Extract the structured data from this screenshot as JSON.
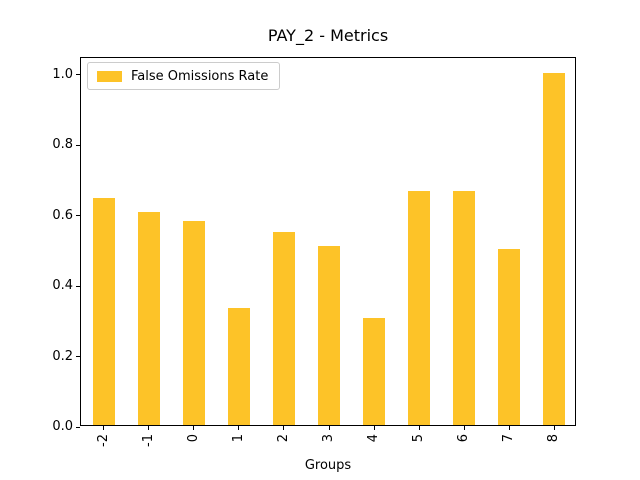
{
  "title": "PAY_2 - Metrics",
  "legend": {
    "label": "False Omissions Rate"
  },
  "chart_data": {
    "type": "bar",
    "title": "PAY_2 - Metrics",
    "xlabel": "Groups",
    "ylabel": "",
    "categories": [
      "-2",
      "-1",
      "0",
      "1",
      "2",
      "3",
      "4",
      "5",
      "6",
      "7",
      "8"
    ],
    "series": [
      {
        "name": "False Omissions Rate",
        "color": "#FDC328",
        "values": [
          0.645,
          0.605,
          0.58,
          0.333,
          0.548,
          0.507,
          0.305,
          0.665,
          0.665,
          0.5,
          1.0
        ]
      }
    ],
    "yticks": [
      0.0,
      0.2,
      0.4,
      0.6,
      0.8,
      1.0
    ],
    "ytick_labels": [
      "0.0",
      "0.2",
      "0.4",
      "0.6",
      "0.8",
      "1.0"
    ],
    "ylim": [
      0,
      1.047
    ],
    "xtick_rotation": 90,
    "grid": false,
    "legend_position": "upper left"
  }
}
